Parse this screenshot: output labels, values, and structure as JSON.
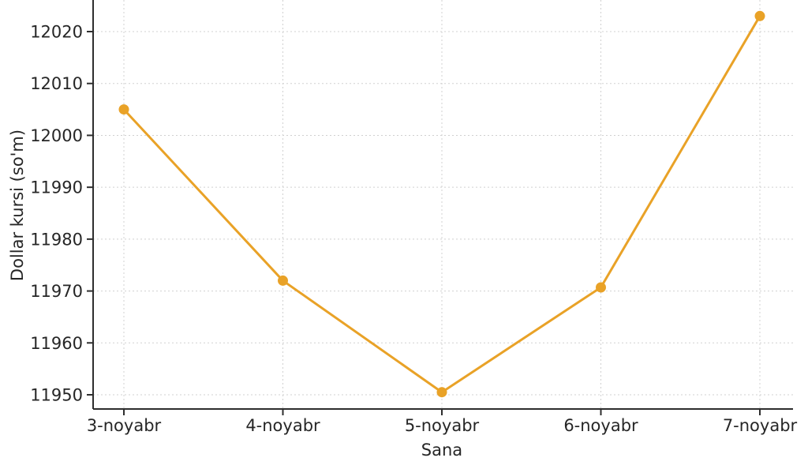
{
  "chart_data": {
    "type": "line",
    "xlabel": "Sana",
    "ylabel": "Dollar kursi (so'm)",
    "categories": [
      "3-noyabr",
      "4-noyabr",
      "5-noyabr",
      "6-noyabr",
      "7-noyabr"
    ],
    "series": [
      {
        "name": "Dollar kursi",
        "values": [
          12005,
          11972,
          11950.5,
          11970.7,
          12023
        ]
      }
    ],
    "yticks": [
      11950,
      11960,
      11970,
      11980,
      11990,
      12000,
      12010,
      12020
    ],
    "ylim": [
      11947.26,
      12026.09
    ],
    "grid": true,
    "grid_style": "dashed",
    "legend_position": "none",
    "marker": "circle",
    "notes": "figure cropped at top; no title visible",
    "colors": {
      "line": "#E9A227",
      "marker": "#E9A227",
      "grid": "#d0d0d0",
      "axis": "#2e2e2e",
      "text": "#262626",
      "background": "#ffffff"
    }
  }
}
